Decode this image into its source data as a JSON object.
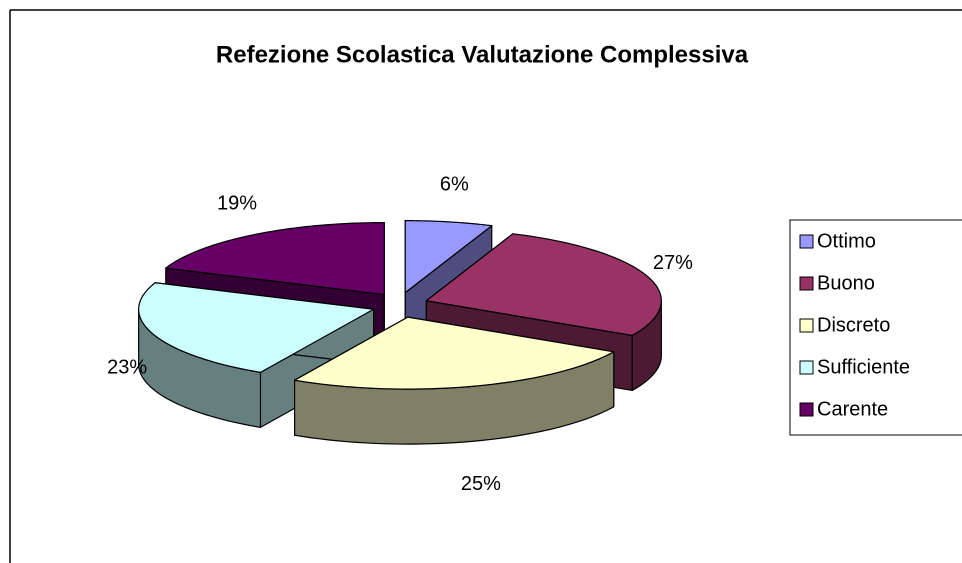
{
  "chart_data": {
    "type": "pie",
    "title": "Refezione Scolastica Valutazione Complessiva",
    "categories": [
      "Ottimo",
      "Buono",
      "Discreto",
      "Sufficiente",
      "Carente"
    ],
    "values": [
      6,
      27,
      25,
      23,
      19
    ],
    "value_labels": [
      "6%",
      "27%",
      "25%",
      "23%",
      "19%"
    ],
    "colors": [
      "#9999ff",
      "#993366",
      "#ffffcc",
      "#ccffff",
      "#660066"
    ],
    "legend": "right"
  }
}
